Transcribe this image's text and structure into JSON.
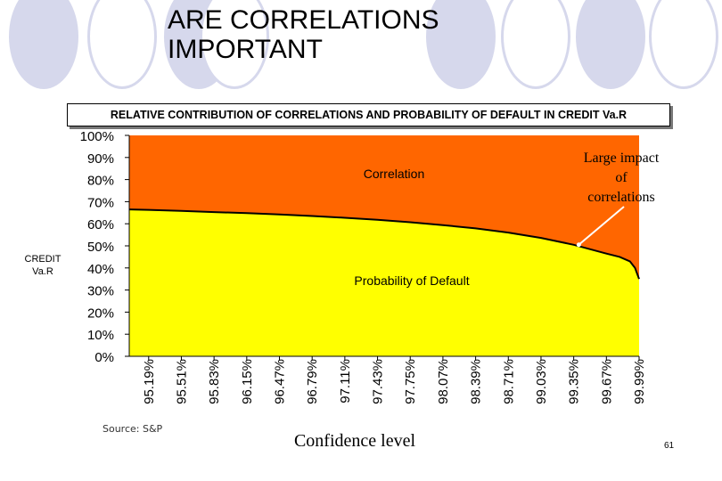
{
  "slide": {
    "title_line1": "ARE CORRELATIONS",
    "title_line2": "IMPORTANT",
    "source": "Source: S&P",
    "page_number": "61"
  },
  "colors": {
    "correlation": "#ff6600",
    "probability": "#ffff00",
    "curve": "#000000",
    "decoration": "#d6d8ec"
  },
  "chart_data": {
    "type": "area",
    "title": "RELATIVE CONTRIBUTION OF CORRELATIONS AND PROBABILITY OF DEFAULT IN CREDIT Va.R",
    "xlabel": "Confidence level",
    "ylabel": "CREDIT Va.R",
    "ylim": [
      0,
      100
    ],
    "y_ticks": [
      "0%",
      "10%",
      "20%",
      "30%",
      "40%",
      "50%",
      "60%",
      "70%",
      "80%",
      "90%",
      "100%"
    ],
    "x_ticks": [
      "95.19%",
      "95.51%",
      "95.83%",
      "96.15%",
      "96.47%",
      "96.79%",
      "97.11%",
      "97.43%",
      "97.75%",
      "98.07%",
      "98.39%",
      "98.71%",
      "99.03%",
      "99.35%",
      "99.67%",
      "99.99%"
    ],
    "x": [
      95.0,
      95.19,
      95.51,
      95.83,
      96.15,
      96.47,
      96.79,
      97.11,
      97.43,
      97.75,
      98.07,
      98.39,
      98.71,
      99.03,
      99.35,
      99.67,
      99.8,
      99.9,
      99.95,
      99.99
    ],
    "series": [
      {
        "name": "Probability of Default",
        "values": [
          66.5,
          66.3,
          65.8,
          65.3,
          64.8,
          64.2,
          63.5,
          62.7,
          61.8,
          60.7,
          59.4,
          57.9,
          56.0,
          53.6,
          50.5,
          46.5,
          45.0,
          43.0,
          40.0,
          35.0
        ]
      },
      {
        "name": "Correlation",
        "values": [
          33.5,
          33.7,
          34.2,
          34.7,
          35.2,
          35.8,
          36.5,
          37.3,
          38.2,
          39.3,
          40.6,
          42.1,
          44.0,
          46.4,
          49.5,
          53.5,
          55.0,
          57.0,
          60.0,
          65.0
        ]
      }
    ],
    "area_labels": {
      "correlation": "Correlation",
      "probability": "Probability of Default"
    },
    "annotation": {
      "text": [
        "Large impact",
        "of",
        "correlations"
      ],
      "x": 99.4,
      "y": 50.5
    }
  }
}
